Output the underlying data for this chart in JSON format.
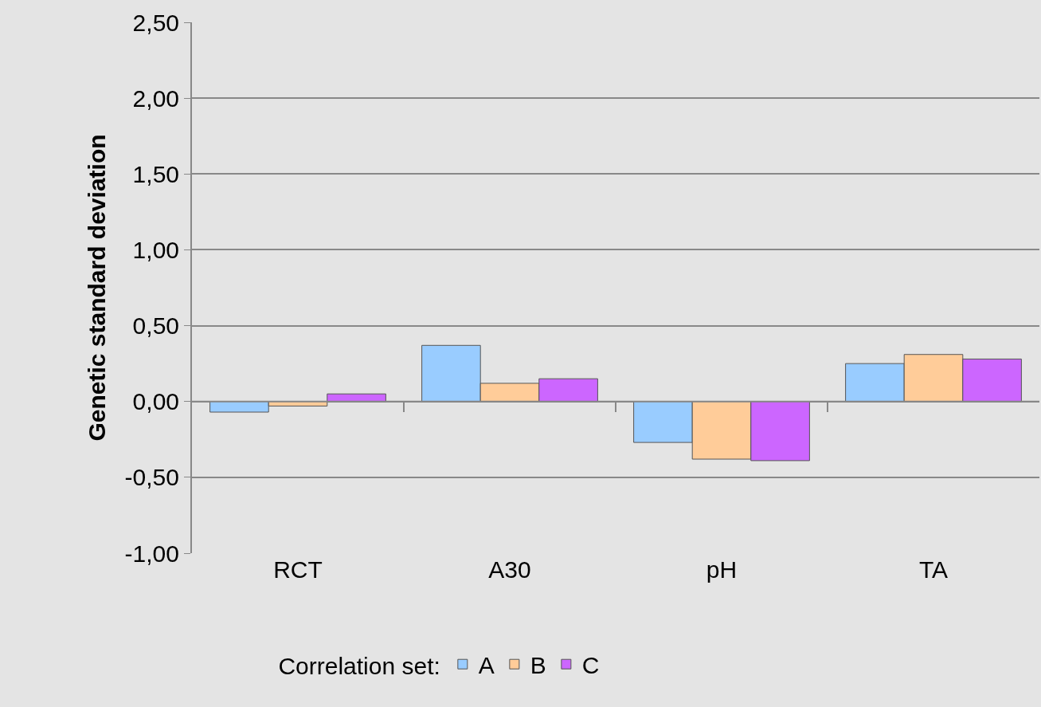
{
  "chart_data": {
    "type": "bar",
    "ylabel": "Genetic standard deviation",
    "legend_title": "Correlation set:",
    "categories": [
      "RCT",
      "A30",
      "pH",
      "TA"
    ],
    "series": [
      {
        "name": "A",
        "color": "#99ccff",
        "values": [
          -0.07,
          0.37,
          -0.27,
          0.25
        ]
      },
      {
        "name": "B",
        "color": "#ffcc99",
        "values": [
          -0.03,
          0.12,
          -0.38,
          0.31
        ]
      },
      {
        "name": "C",
        "color": "#cc66ff",
        "values": [
          0.05,
          0.15,
          -0.39,
          0.28
        ]
      }
    ],
    "ylim": [
      -1.0,
      2.5
    ],
    "yticks": [
      {
        "value": -1.0,
        "label": "-1,00"
      },
      {
        "value": -0.5,
        "label": "-0,50"
      },
      {
        "value": 0.0,
        "label": "0,00"
      },
      {
        "value": 0.5,
        "label": "0,50"
      },
      {
        "value": 1.0,
        "label": "1,00"
      },
      {
        "value": 1.5,
        "label": "1,50"
      },
      {
        "value": 2.0,
        "label": "2,00"
      },
      {
        "value": 2.5,
        "label": "2,50"
      }
    ],
    "grid": "y",
    "legend": "bottom"
  }
}
